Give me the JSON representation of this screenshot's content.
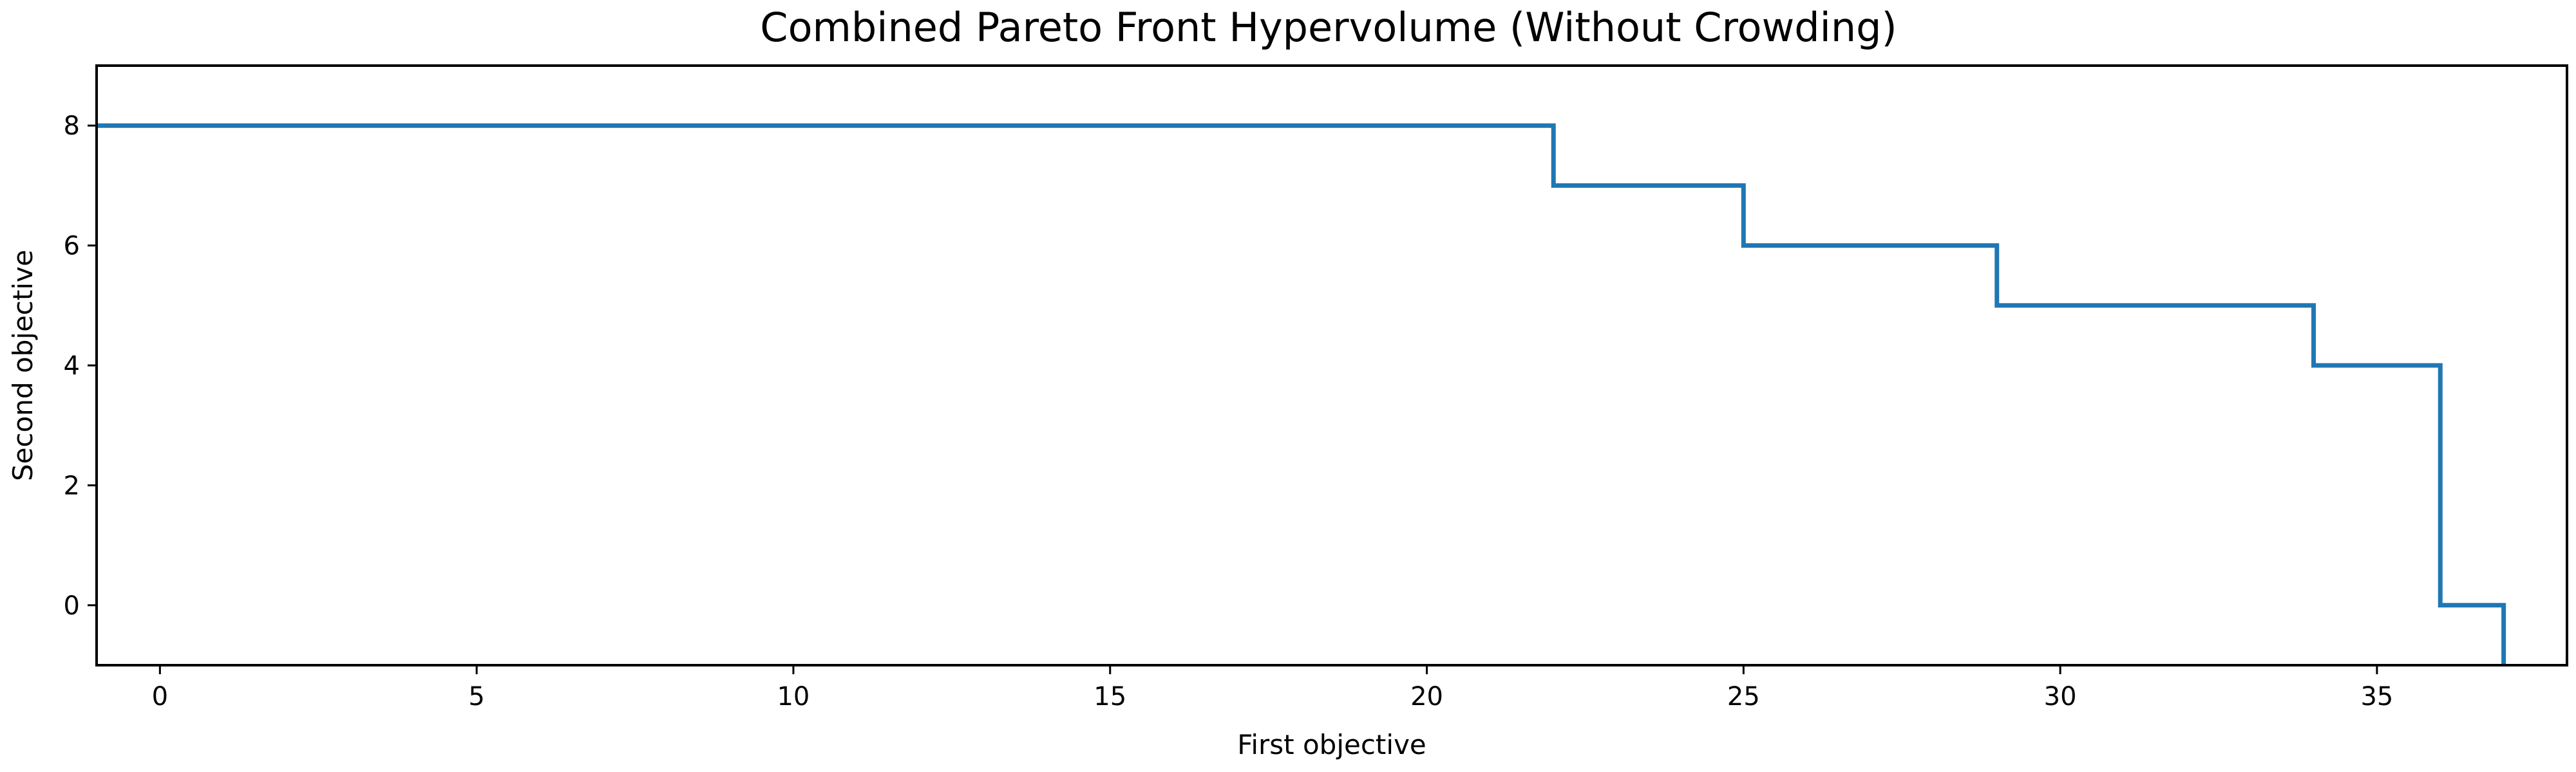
{
  "chart_data": {
    "type": "line",
    "drawstyle": "steps-post",
    "title": "Combined Pareto Front Hypervolume (Without Crowding)",
    "xlabel": "First objective",
    "ylabel": "Second objective",
    "xlim": [
      -1,
      38
    ],
    "ylim": [
      -1,
      9
    ],
    "xticks": [
      0,
      5,
      10,
      15,
      20,
      25,
      30,
      35
    ],
    "yticks": [
      0,
      2,
      4,
      6,
      8
    ],
    "grid": false,
    "legend": false,
    "series": [
      {
        "color": "#1f77b4",
        "x": [
          -1,
          22,
          25,
          29,
          34,
          36,
          37,
          37
        ],
        "y": [
          8,
          7,
          6,
          5,
          4,
          0,
          -1,
          -1
        ]
      }
    ]
  }
}
